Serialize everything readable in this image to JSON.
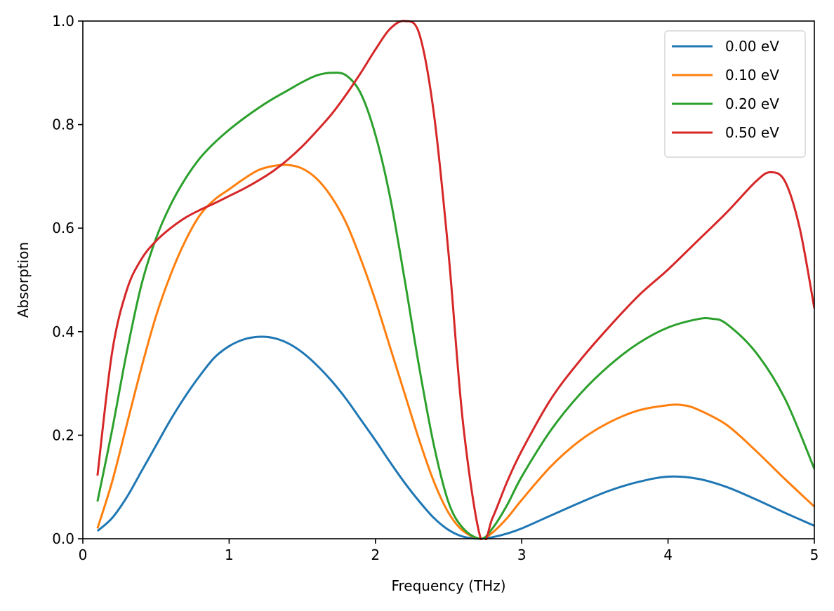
{
  "chart_data": {
    "type": "line",
    "xlabel": "Frequency (THz)",
    "ylabel": "Absorption",
    "xlim": [
      0,
      5
    ],
    "ylim": [
      0,
      1
    ],
    "xticks": [
      "0",
      "1",
      "2",
      "3",
      "4",
      "5"
    ],
    "yticks": [
      "0.0",
      "0.2",
      "0.4",
      "0.6",
      "0.8",
      "1.0"
    ],
    "grid": false,
    "legend_position": "top-right",
    "series": [
      {
        "name": "0.00 eV",
        "color": "#1f77b4",
        "x": [
          0.1,
          0.2,
          0.3,
          0.4,
          0.5,
          0.6,
          0.7,
          0.8,
          0.9,
          1.0,
          1.1,
          1.2,
          1.3,
          1.4,
          1.5,
          1.6,
          1.7,
          1.8,
          1.9,
          2.0,
          2.1,
          2.2,
          2.3,
          2.4,
          2.5,
          2.6,
          2.72,
          2.8,
          2.9,
          3.0,
          3.2,
          3.4,
          3.6,
          3.8,
          4.0,
          4.2,
          4.4,
          4.6,
          4.8,
          5.0
        ],
        "y": [
          0.015,
          0.04,
          0.08,
          0.13,
          0.18,
          0.23,
          0.275,
          0.315,
          0.35,
          0.372,
          0.385,
          0.39,
          0.388,
          0.378,
          0.36,
          0.335,
          0.305,
          0.27,
          0.23,
          0.19,
          0.148,
          0.108,
          0.072,
          0.04,
          0.017,
          0.004,
          0.0,
          0.003,
          0.01,
          0.02,
          0.045,
          0.07,
          0.093,
          0.11,
          0.12,
          0.116,
          0.1,
          0.076,
          0.05,
          0.025
        ]
      },
      {
        "name": "0.10 eV",
        "color": "#ff7f0e",
        "x": [
          0.1,
          0.2,
          0.3,
          0.4,
          0.5,
          0.6,
          0.7,
          0.8,
          0.9,
          1.0,
          1.1,
          1.2,
          1.3,
          1.4,
          1.5,
          1.6,
          1.7,
          1.8,
          1.9,
          2.0,
          2.1,
          2.2,
          2.3,
          2.4,
          2.5,
          2.6,
          2.72,
          2.8,
          2.9,
          3.0,
          3.2,
          3.4,
          3.6,
          3.8,
          4.0,
          4.1,
          4.2,
          4.4,
          4.6,
          4.8,
          5.0
        ],
        "y": [
          0.02,
          0.11,
          0.22,
          0.33,
          0.43,
          0.51,
          0.575,
          0.625,
          0.655,
          0.675,
          0.695,
          0.712,
          0.72,
          0.722,
          0.715,
          0.695,
          0.66,
          0.61,
          0.54,
          0.46,
          0.37,
          0.28,
          0.19,
          0.11,
          0.05,
          0.015,
          0.0,
          0.012,
          0.04,
          0.075,
          0.14,
          0.19,
          0.225,
          0.248,
          0.258,
          0.258,
          0.25,
          0.22,
          0.17,
          0.115,
          0.062
        ]
      },
      {
        "name": "0.20 eV",
        "color": "#2ca02c",
        "x": [
          0.1,
          0.2,
          0.3,
          0.4,
          0.5,
          0.6,
          0.7,
          0.8,
          0.9,
          1.0,
          1.1,
          1.2,
          1.3,
          1.4,
          1.5,
          1.6,
          1.7,
          1.8,
          1.9,
          2.0,
          2.1,
          2.2,
          2.3,
          2.4,
          2.5,
          2.6,
          2.72,
          2.8,
          2.9,
          3.0,
          3.2,
          3.4,
          3.6,
          3.8,
          4.0,
          4.2,
          4.3,
          4.4,
          4.6,
          4.8,
          5.0
        ],
        "y": [
          0.072,
          0.21,
          0.36,
          0.49,
          0.58,
          0.645,
          0.695,
          0.735,
          0.765,
          0.79,
          0.812,
          0.832,
          0.85,
          0.866,
          0.882,
          0.895,
          0.9,
          0.895,
          0.86,
          0.78,
          0.66,
          0.5,
          0.33,
          0.18,
          0.07,
          0.02,
          0.0,
          0.02,
          0.065,
          0.12,
          0.21,
          0.28,
          0.335,
          0.378,
          0.408,
          0.424,
          0.425,
          0.415,
          0.36,
          0.27,
          0.135
        ]
      },
      {
        "name": "0.50 eV",
        "color": "#d62728",
        "x": [
          0.1,
          0.2,
          0.3,
          0.4,
          0.5,
          0.6,
          0.7,
          0.8,
          0.9,
          1.0,
          1.1,
          1.2,
          1.3,
          1.4,
          1.5,
          1.6,
          1.7,
          1.8,
          1.9,
          2.0,
          2.1,
          2.2,
          2.3,
          2.4,
          2.5,
          2.6,
          2.72,
          2.8,
          2.9,
          3.0,
          3.2,
          3.4,
          3.6,
          3.8,
          4.0,
          4.2,
          4.4,
          4.6,
          4.7,
          4.8,
          4.9,
          5.0
        ],
        "y": [
          0.122,
          0.36,
          0.48,
          0.54,
          0.575,
          0.6,
          0.62,
          0.635,
          0.648,
          0.662,
          0.676,
          0.692,
          0.71,
          0.732,
          0.758,
          0.788,
          0.82,
          0.858,
          0.9,
          0.945,
          0.985,
          1.0,
          0.975,
          0.82,
          0.55,
          0.22,
          0.0,
          0.04,
          0.11,
          0.17,
          0.27,
          0.345,
          0.41,
          0.47,
          0.52,
          0.575,
          0.63,
          0.69,
          0.708,
          0.69,
          0.6,
          0.445
        ]
      }
    ]
  }
}
